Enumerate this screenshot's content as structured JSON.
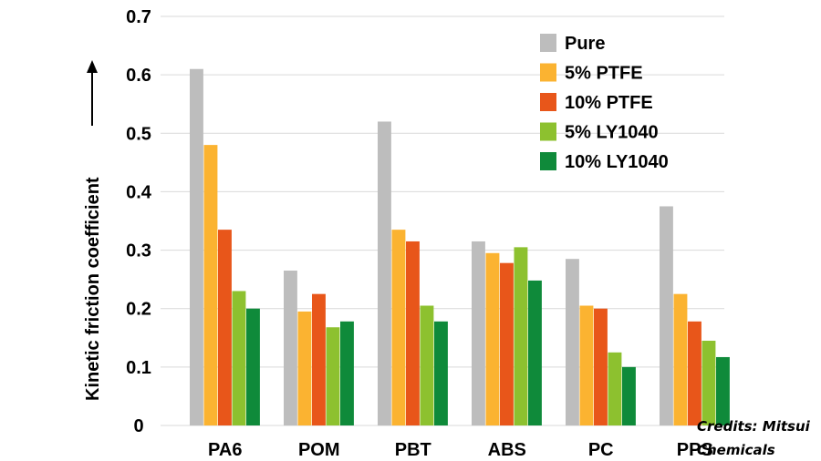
{
  "chart_data": {
    "type": "bar",
    "title": "",
    "xlabel": "",
    "ylabel": "Kinetic friction coefficient",
    "ylim": [
      0,
      0.7
    ],
    "yticks": [
      "0",
      "0.1",
      "0.2",
      "0.3",
      "0.4",
      "0.5",
      "0.6",
      "0.7"
    ],
    "grid": "horizontal",
    "legend_position": "top-right",
    "categories": [
      "PA6",
      "POM",
      "PBT",
      "ABS",
      "PC",
      "PPS"
    ],
    "series": [
      {
        "name": "Pure",
        "color": "#bdbdbd",
        "values": [
          0.61,
          0.265,
          0.52,
          0.315,
          0.285,
          0.375
        ]
      },
      {
        "name": "5% PTFE",
        "color": "#fbb331",
        "values": [
          0.48,
          0.195,
          0.335,
          0.295,
          0.205,
          0.225
        ]
      },
      {
        "name": "10% PTFE",
        "color": "#e8561a",
        "values": [
          0.335,
          0.225,
          0.315,
          0.278,
          0.2,
          0.178
        ]
      },
      {
        "name": "5% LY1040",
        "color": "#8dc12f",
        "values": [
          0.23,
          0.168,
          0.205,
          0.305,
          0.125,
          0.145
        ]
      },
      {
        "name": "10% LY1040",
        "color": "#0f8a3a",
        "values": [
          0.2,
          0.178,
          0.178,
          0.248,
          0.1,
          0.117
        ]
      }
    ]
  },
  "credit": {
    "line1": "Credits: Mitsui",
    "line2": "Chemicals"
  }
}
